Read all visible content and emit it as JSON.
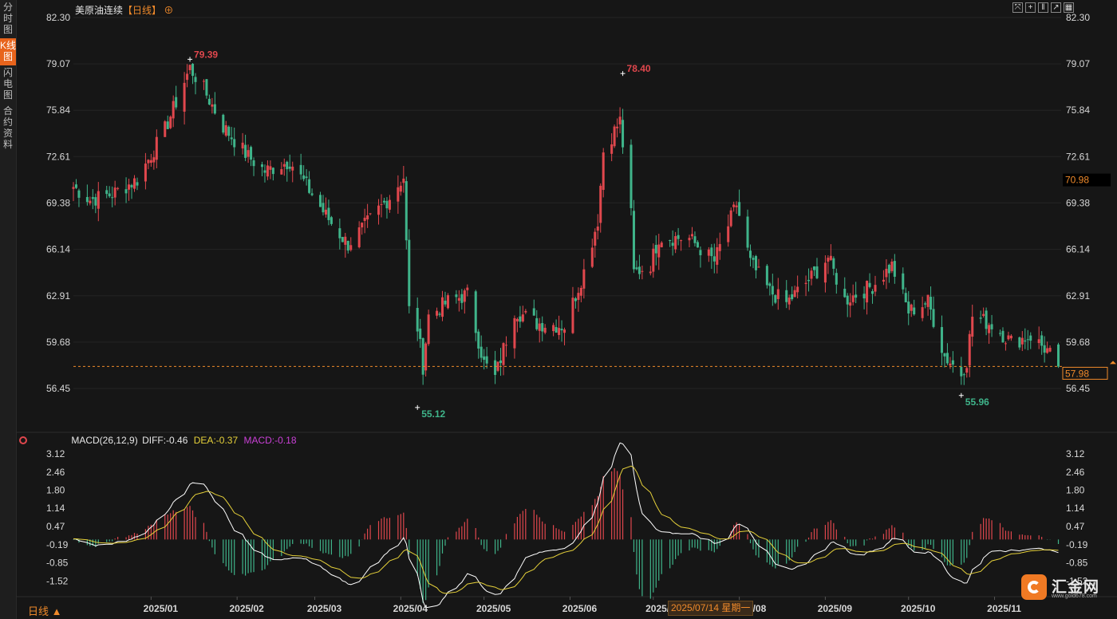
{
  "sidebar": {
    "tabs": [
      {
        "label": "分时图",
        "active": false
      },
      {
        "label": "K线图",
        "active": true
      },
      {
        "label": "闪电图",
        "active": false
      },
      {
        "label": "合约资料",
        "active": false
      }
    ]
  },
  "header": {
    "instrument": "美原油连续",
    "period_tag": "【日线】",
    "add_icon": "circle-plus-icon",
    "toolbar_icons": [
      "expand-icon",
      "crosshair-icon",
      "pause-icon",
      "export-icon",
      "grid-icon"
    ]
  },
  "footer": {
    "period_button": "日线 ▲",
    "date_tooltip": "2025/07/14 星期一",
    "logo_name": "汇金网",
    "logo_url": "www.gold678.com"
  },
  "colors": {
    "up": "#e0474d",
    "down": "#3fb48a",
    "background": "#161616",
    "grid": "#242424",
    "accent": "#f08a2a",
    "diff_line": "#ffffff",
    "dea_line": "#e6d13a",
    "macd_label": "#c940d6"
  },
  "chart_data": [
    {
      "type": "candlestick",
      "title": "美原油连续【日线】",
      "x_ticks": [
        "2025/01",
        "2025/02",
        "2025/03",
        "2025/04",
        "2025/05",
        "2025/06",
        "2025/07",
        "2025/08",
        "2025/09",
        "2025/10",
        "2025/11"
      ],
      "y_ticks": [
        82.3,
        79.07,
        75.84,
        72.61,
        69.38,
        66.14,
        62.91,
        59.68,
        56.45
      ],
      "ylim": [
        53.5,
        82.3
      ],
      "last_price": 57.98,
      "crosshair_price": 70.98,
      "annotations": [
        {
          "label": "79.39",
          "value": 79.39,
          "kind": "high",
          "date": "2025/01"
        },
        {
          "label": "55.12",
          "value": 55.12,
          "kind": "low",
          "date": "2025/04"
        },
        {
          "label": "78.40",
          "value": 78.4,
          "kind": "high",
          "date": "2025/06"
        },
        {
          "label": "55.96",
          "value": 55.96,
          "kind": "low",
          "date": "2025/10"
        }
      ],
      "close_path": [
        [
          "2024-12-04",
          70.5
        ],
        [
          "2024-12-10",
          69.6
        ],
        [
          "2024-12-18",
          70.0
        ],
        [
          "2024-12-27",
          71.0
        ],
        [
          "2025-01-06",
          74.5
        ],
        [
          "2025-01-15",
          78.8
        ],
        [
          "2025-01-20",
          77.3
        ],
        [
          "2025-01-27",
          74.7
        ],
        [
          "2025-02-05",
          72.6
        ],
        [
          "2025-02-11",
          71.6
        ],
        [
          "2025-02-20",
          72.3
        ],
        [
          "2025-02-28",
          70.0
        ],
        [
          "2025-03-05",
          68.5
        ],
        [
          "2025-03-10",
          67.2
        ],
        [
          "2025-03-13",
          66.5
        ],
        [
          "2025-03-20",
          68.0
        ],
        [
          "2025-03-28",
          69.8
        ],
        [
          "2025-04-02",
          71.2
        ],
        [
          "2025-04-04",
          61.9
        ],
        [
          "2025-04-07",
          60.7
        ],
        [
          "2025-04-09",
          58.0
        ],
        [
          "2025-04-11",
          61.5
        ],
        [
          "2025-04-18",
          62.5
        ],
        [
          "2025-04-25",
          63.0
        ],
        [
          "2025-05-01",
          58.2
        ],
        [
          "2025-05-05",
          57.2
        ],
        [
          "2025-05-12",
          61.9
        ],
        [
          "2025-05-20",
          61.0
        ],
        [
          "2025-05-30",
          60.8
        ],
        [
          "2025-06-06",
          64.6
        ],
        [
          "2025-06-11",
          68.2
        ],
        [
          "2025-06-13",
          73.0
        ],
        [
          "2025-06-19",
          75.1
        ],
        [
          "2025-06-23",
          68.5
        ],
        [
          "2025-06-24",
          64.5
        ],
        [
          "2025-06-30",
          65.1
        ],
        [
          "2025-07-03",
          67.0
        ],
        [
          "2025-07-14",
          66.9
        ],
        [
          "2025-07-23",
          65.3
        ],
        [
          "2025-07-31",
          69.3
        ],
        [
          "2025-08-05",
          65.2
        ],
        [
          "2025-08-12",
          63.2
        ],
        [
          "2025-08-18",
          62.4
        ],
        [
          "2025-08-27",
          64.2
        ],
        [
          "2025-09-02",
          65.6
        ],
        [
          "2025-09-08",
          62.6
        ],
        [
          "2025-09-18",
          63.6
        ],
        [
          "2025-09-25",
          65.0
        ],
        [
          "2025-10-01",
          61.8
        ],
        [
          "2025-10-08",
          62.5
        ],
        [
          "2025-10-14",
          58.7
        ],
        [
          "2025-10-20",
          57.5
        ],
        [
          "2025-10-22",
          58.4
        ],
        [
          "2025-10-24",
          61.5
        ],
        [
          "2025-10-31",
          60.9
        ],
        [
          "2025-11-07",
          59.7
        ],
        [
          "2025-11-14",
          60.1
        ],
        [
          "2025-11-20",
          59.1
        ],
        [
          "2025-11-24",
          57.98
        ]
      ]
    },
    {
      "type": "macd",
      "title": "MACD(26,12,9)",
      "diff_label": "DIFF:-0.46",
      "dea_label": "DEA:-0.37",
      "macd_label": "MACD:-0.18",
      "diff": -0.46,
      "dea": -0.37,
      "macd": -0.18,
      "y_ticks": [
        3.12,
        2.46,
        1.8,
        1.14,
        0.47,
        -0.19,
        -0.85,
        -1.52
      ],
      "ylim": [
        -2.0,
        3.3
      ]
    }
  ]
}
